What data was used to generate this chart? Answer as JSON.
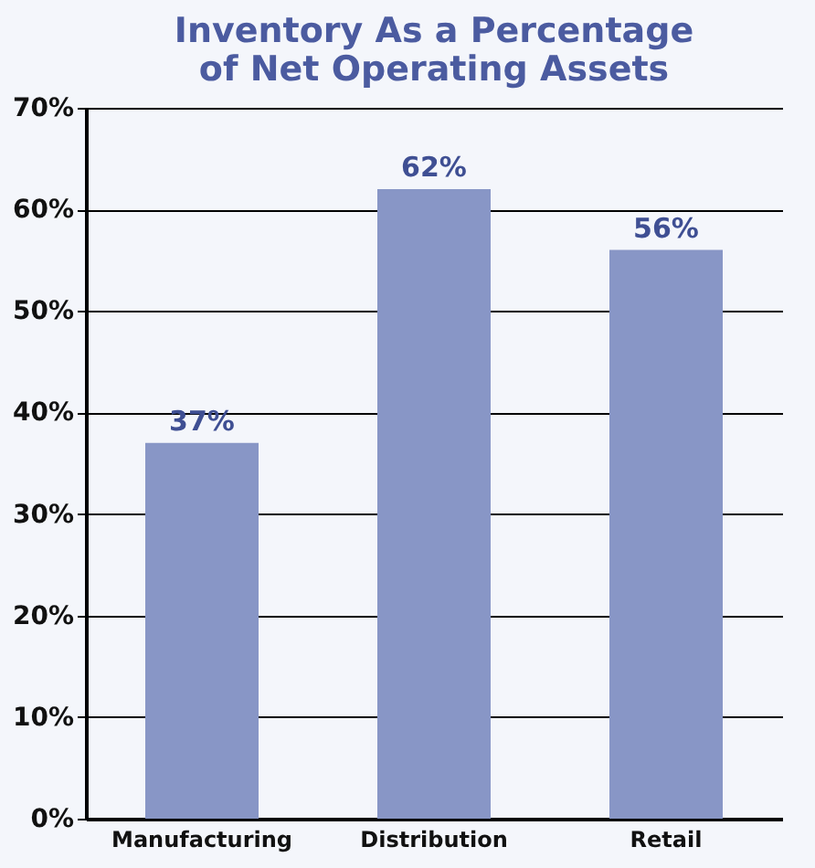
{
  "chart_data": {
    "type": "bar",
    "title": "Inventory As a Percentage of Net Operating Assets",
    "categories": [
      "Manufacturing",
      "Distribution",
      "Retail"
    ],
    "values": [
      37,
      62,
      56
    ],
    "color": "#8896c6",
    "value_labels": [
      "37%",
      "62%",
      "56%"
    ],
    "ylim": [
      0,
      70
    ],
    "yticks": [
      {
        "value": 0,
        "label": "0%"
      },
      {
        "value": 10,
        "label": "10%"
      },
      {
        "value": 20,
        "label": "20%"
      },
      {
        "value": 30,
        "label": "30%"
      },
      {
        "value": 40,
        "label": "40%"
      },
      {
        "value": 50,
        "label": "50%"
      },
      {
        "value": 60,
        "label": "60%"
      },
      {
        "value": 70,
        "label": "70%"
      }
    ],
    "grid": "y"
  }
}
